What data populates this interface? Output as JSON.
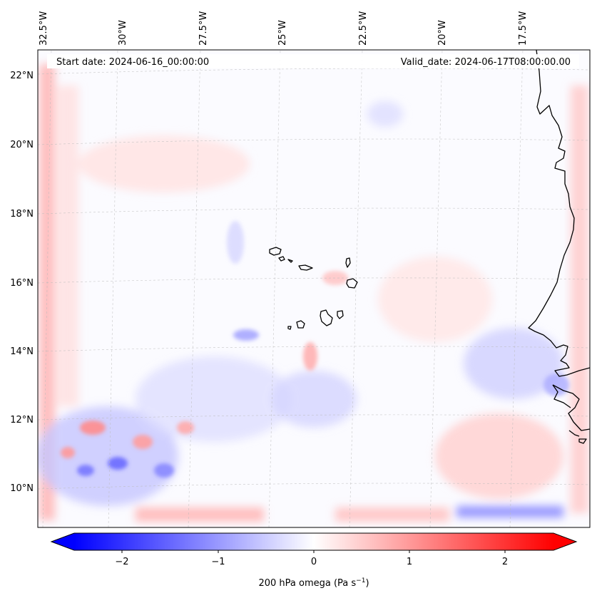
{
  "header": {
    "start_date": "Start date: 2024-06-16_00:00:00",
    "valid_date": "Valid_date: 2024-06-17T08:00:00.00"
  },
  "longitude_labels": [
    "32.5°W",
    "30°W",
    "27.5°W",
    "25°W",
    "22.5°W",
    "20°W",
    "17.5°W"
  ],
  "latitude_labels": [
    "22°N",
    "20°N",
    "18°N",
    "16°N",
    "14°N",
    "12°N",
    "10°N"
  ],
  "colorbar": {
    "label_prefix": "200 hPa omega (Pa s",
    "label_exponent": "−1",
    "label_suffix": ")",
    "ticks": [
      "−2",
      "−1",
      "0",
      "1",
      "2"
    ],
    "vmin": -2.5,
    "vmax": 2.5,
    "colormap": "bwr",
    "extend": "both"
  },
  "colors": {
    "negative": "#0000ff",
    "zero": "#ffffff",
    "positive": "#ff0000",
    "coastline": "#000000",
    "gridline": "#bbbbbb"
  },
  "chart_data": {
    "type": "heatmap",
    "variable": "200 hPa omega",
    "units": "Pa s^-1",
    "lon_ticks": [
      -32.5,
      -30,
      -27.5,
      -25,
      -22.5,
      -20,
      -17.5
    ],
    "lat_ticks": [
      22,
      20,
      18,
      16,
      14,
      12,
      10
    ],
    "features": [
      "coastline-west-africa",
      "cape-verde-islands"
    ]
  }
}
